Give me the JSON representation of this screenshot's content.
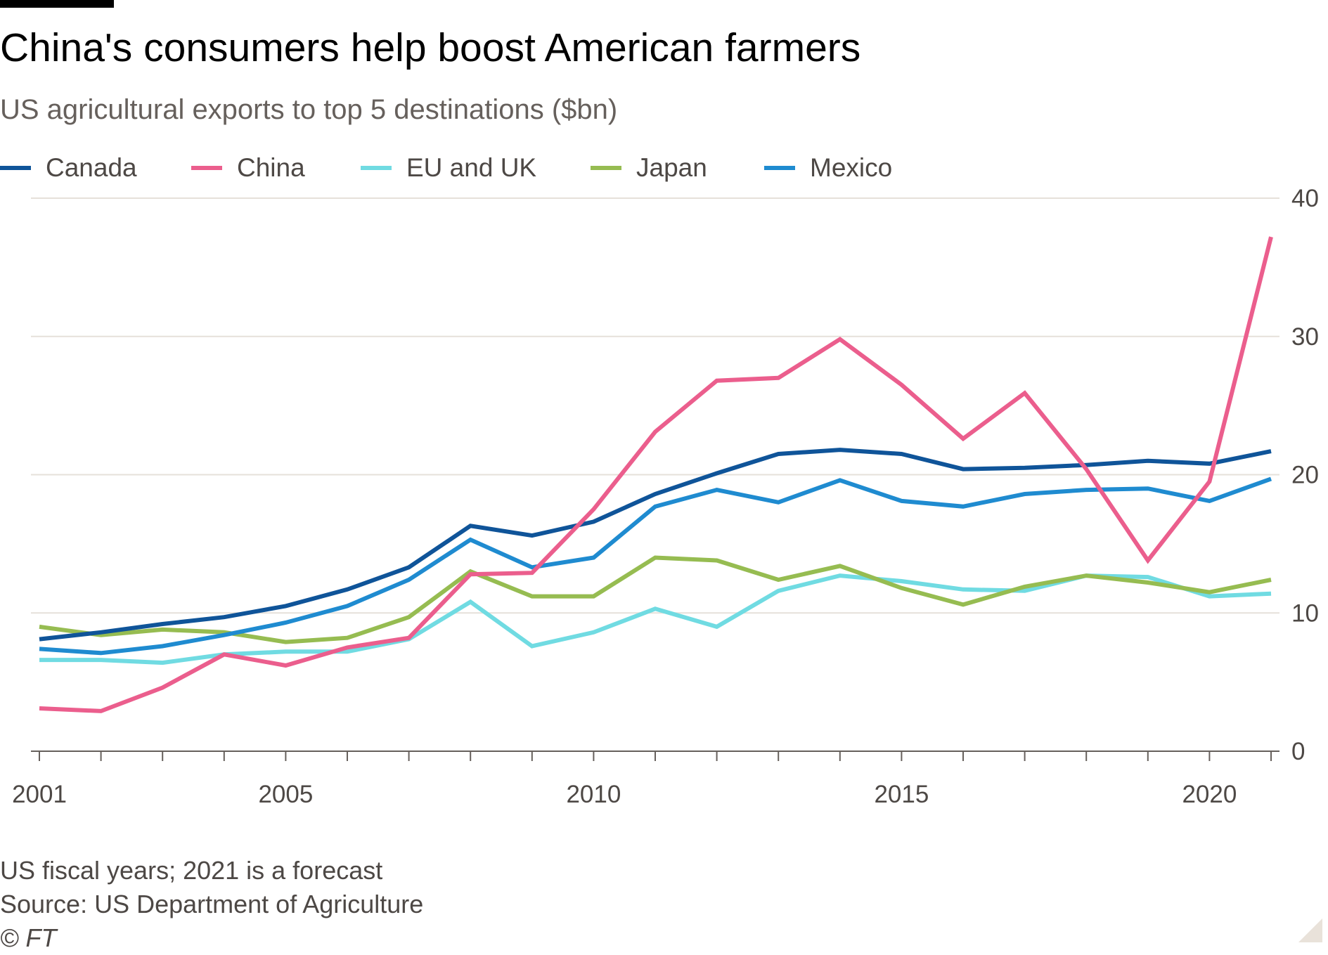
{
  "title": "China's consumers help boost American farmers",
  "subtitle": "US agricultural exports to top 5 destinations ($bn)",
  "colors": {
    "Canada": "#0f5499",
    "China": "#eb5e8d",
    "EU and UK": "#70dbe2",
    "Japan": "#96bc51",
    "Mexico": "#1f8bd0",
    "grid": "#e6e1da",
    "axis": "#66605c"
  },
  "chart_data": {
    "type": "line",
    "title": "China's consumers help boost American farmers",
    "subtitle": "US agricultural exports to top 5 destinations ($bn)",
    "x": [
      2001,
      2002,
      2003,
      2004,
      2005,
      2006,
      2007,
      2008,
      2009,
      2010,
      2011,
      2012,
      2013,
      2014,
      2015,
      2016,
      2017,
      2018,
      2019,
      2020,
      2021
    ],
    "x_ticks": [
      "2001",
      "2005",
      "2010",
      "2015",
      "2020"
    ],
    "y_ticks": [
      "0",
      "10",
      "20",
      "30",
      "40"
    ],
    "ylim": [
      0,
      40
    ],
    "xlim": [
      2001,
      2021
    ],
    "y_axis_side": "right",
    "grid": true,
    "legend_position": "top",
    "series": [
      {
        "name": "Canada",
        "values": [
          8.1,
          8.6,
          9.2,
          9.7,
          10.5,
          11.7,
          13.3,
          16.3,
          15.6,
          16.6,
          18.6,
          20.1,
          21.5,
          21.8,
          21.5,
          20.4,
          20.5,
          20.7,
          21.0,
          20.8,
          21.7
        ]
      },
      {
        "name": "China",
        "values": [
          3.1,
          2.9,
          4.6,
          7.0,
          6.2,
          7.5,
          8.2,
          12.8,
          12.9,
          17.5,
          23.1,
          26.8,
          27.0,
          29.8,
          26.5,
          22.6,
          25.9,
          20.4,
          13.8,
          19.5,
          37.2
        ]
      },
      {
        "name": "EU and UK",
        "values": [
          6.6,
          6.6,
          6.4,
          7.0,
          7.2,
          7.2,
          8.1,
          10.8,
          7.6,
          8.6,
          10.3,
          9.0,
          11.6,
          12.7,
          12.3,
          11.7,
          11.6,
          12.7,
          12.6,
          11.2,
          11.4
        ]
      },
      {
        "name": "Japan",
        "values": [
          9.0,
          8.4,
          8.8,
          8.6,
          7.9,
          8.2,
          9.7,
          13.0,
          11.2,
          11.2,
          14.0,
          13.8,
          12.4,
          13.4,
          11.8,
          10.6,
          11.9,
          12.7,
          12.2,
          11.5,
          12.4
        ]
      },
      {
        "name": "Mexico",
        "values": [
          7.4,
          7.1,
          7.6,
          8.4,
          9.3,
          10.5,
          12.4,
          15.3,
          13.3,
          14.0,
          17.7,
          18.9,
          18.0,
          19.6,
          18.1,
          17.7,
          18.6,
          18.9,
          19.0,
          18.1,
          19.7
        ]
      }
    ]
  },
  "notes": {
    "line1": "US fiscal years; 2021 is a forecast",
    "line2": "Source: US Department of Agriculture",
    "copyright": "© FT"
  }
}
